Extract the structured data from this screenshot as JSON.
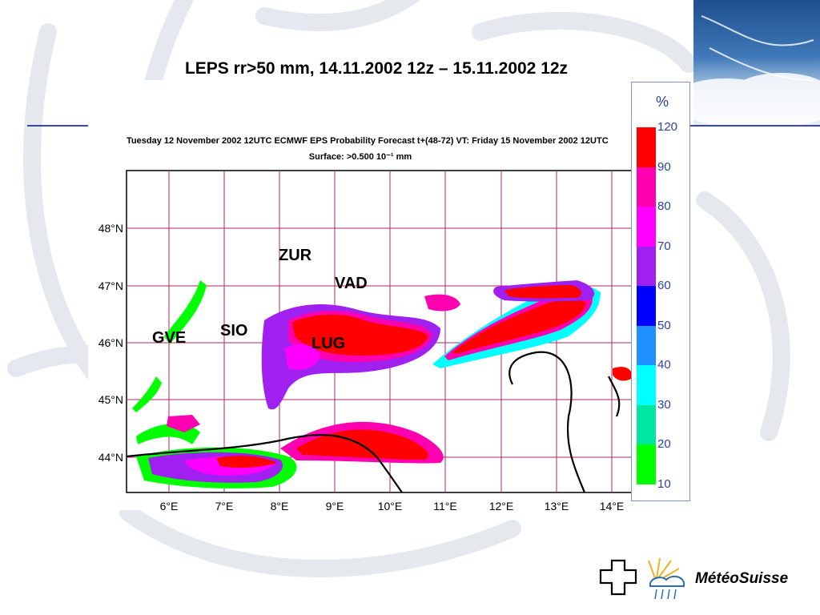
{
  "slide": {
    "title": "LEPS rr>50 mm, 14.11.2002 12z – 15.11.2002 12z"
  },
  "map": {
    "header_line1": "Tuesday 12 November 2002 12UTC ECMWF  EPS Probability Forecast t+(48-72) VT: Friday 15 November 2002 12UTC",
    "header_line2": "Surface:  >0.500 10⁻¹ mm",
    "lat_labels": [
      "48°N",
      "47°N",
      "46°N",
      "45°N",
      "44°N"
    ],
    "lon_labels": [
      "6°E",
      "7°E",
      "8°E",
      "9°E",
      "10°E",
      "11°E",
      "12°E",
      "13°E",
      "14°E"
    ],
    "stations": [
      "ZUR",
      "VAD",
      "SIO",
      "GVE",
      "LUG"
    ]
  },
  "legend": {
    "unit": "%",
    "ticks": [
      "120",
      "90",
      "80",
      "70",
      "60",
      "50",
      "40",
      "30",
      "20",
      "10"
    ],
    "colors": [
      "#ff0000",
      "#ff00b0",
      "#ff00ff",
      "#a020f0",
      "#0000ff",
      "#1e90ff",
      "#00ffff",
      "#00e5a0",
      "#00ff00"
    ]
  },
  "logo": {
    "text": "MétéoSuisse"
  }
}
